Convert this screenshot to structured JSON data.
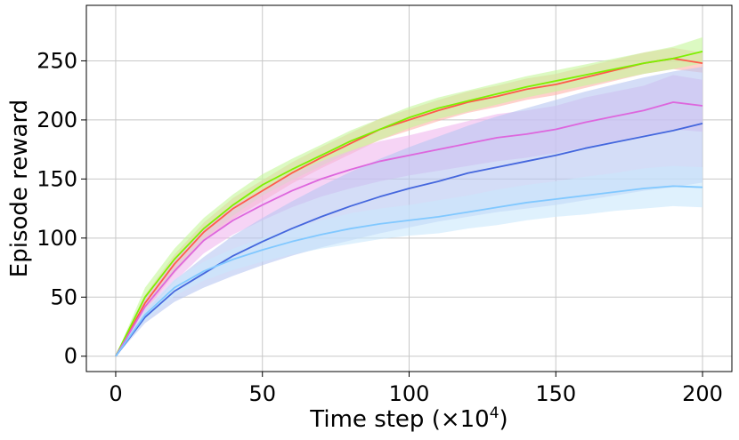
{
  "chart_data": {
    "type": "line",
    "title": "",
    "xlabel": "Time step (×10",
    "xlabel_sup": "4",
    "xlabel_suffix": ")",
    "ylabel": "Episode reward",
    "xlim": [
      -10,
      210
    ],
    "ylim": [
      -13,
      297
    ],
    "xticks": [
      0,
      50,
      100,
      150,
      200
    ],
    "yticks": [
      0,
      50,
      100,
      150,
      200,
      250
    ],
    "grid": true,
    "legend": "none",
    "series": [
      {
        "color": "#ff5a4a",
        "band": "#ffb3aa",
        "x": [
          0,
          10,
          20,
          30,
          40,
          50,
          60,
          70,
          80,
          90,
          100,
          110,
          120,
          130,
          140,
          150,
          160,
          170,
          180,
          190,
          200
        ],
        "mean": [
          0,
          45,
          78,
          105,
          125,
          140,
          155,
          168,
          180,
          192,
          200,
          208,
          215,
          220,
          226,
          230,
          236,
          242,
          248,
          252,
          248
        ],
        "lower": [
          0,
          38,
          70,
          97,
          116,
          131,
          146,
          159,
          171,
          183,
          191,
          199,
          206,
          211,
          217,
          221,
          227,
          233,
          239,
          243,
          240
        ],
        "upper": [
          0,
          52,
          86,
          113,
          134,
          149,
          164,
          177,
          189,
          201,
          209,
          217,
          224,
          229,
          235,
          239,
          245,
          251,
          257,
          261,
          257
        ]
      },
      {
        "color": "#7df000",
        "band": "#c5f79a",
        "x": [
          0,
          10,
          20,
          30,
          40,
          50,
          60,
          70,
          80,
          90,
          100,
          110,
          120,
          130,
          140,
          150,
          160,
          170,
          180,
          190,
          200
        ],
        "mean": [
          0,
          50,
          82,
          108,
          128,
          145,
          158,
          170,
          182,
          192,
          202,
          210,
          216,
          222,
          228,
          233,
          238,
          243,
          248,
          252,
          258
        ],
        "lower": [
          0,
          42,
          73,
          99,
          119,
          136,
          149,
          161,
          173,
          183,
          193,
          201,
          207,
          213,
          219,
          224,
          229,
          234,
          239,
          243,
          248
        ],
        "upper": [
          0,
          58,
          91,
          117,
          137,
          154,
          167,
          179,
          191,
          201,
          211,
          219,
          225,
          231,
          237,
          242,
          247,
          252,
          257,
          262,
          270
        ]
      },
      {
        "color": "#dd66dd",
        "band": "#f0b8ee",
        "x": [
          0,
          10,
          20,
          30,
          40,
          50,
          60,
          70,
          80,
          90,
          100,
          110,
          120,
          130,
          140,
          150,
          160,
          170,
          180,
          190,
          200
        ],
        "mean": [
          0,
          42,
          72,
          98,
          115,
          128,
          140,
          150,
          158,
          165,
          170,
          175,
          180,
          185,
          188,
          192,
          198,
          203,
          208,
          215,
          212
        ],
        "lower": [
          0,
          35,
          63,
          87,
          103,
          115,
          126,
          135,
          142,
          148,
          153,
          157,
          161,
          165,
          168,
          172,
          177,
          182,
          187,
          192,
          190
        ],
        "upper": [
          0,
          49,
          81,
          109,
          127,
          141,
          154,
          165,
          174,
          182,
          187,
          193,
          199,
          205,
          208,
          212,
          219,
          224,
          229,
          238,
          234
        ]
      },
      {
        "color": "#4466dd",
        "band": "#b7c7f2",
        "x": [
          0,
          10,
          20,
          30,
          40,
          50,
          60,
          70,
          80,
          90,
          100,
          110,
          120,
          130,
          140,
          150,
          160,
          170,
          180,
          190,
          200
        ],
        "mean": [
          0,
          33,
          55,
          70,
          85,
          97,
          108,
          118,
          127,
          135,
          142,
          148,
          155,
          160,
          165,
          170,
          176,
          181,
          186,
          191,
          197
        ],
        "lower": [
          0,
          28,
          46,
          58,
          68,
          77,
          85,
          92,
          98,
          104,
          109,
          114,
          118,
          122,
          125,
          128,
          132,
          136,
          140,
          143,
          147
        ],
        "upper": [
          0,
          38,
          64,
          84,
          102,
          117,
          131,
          144,
          156,
          167,
          177,
          186,
          195,
          203,
          210,
          217,
          224,
          230,
          236,
          241,
          245
        ]
      },
      {
        "color": "#80c8ff",
        "band": "#c9e7fb",
        "x": [
          0,
          10,
          20,
          30,
          40,
          50,
          60,
          70,
          80,
          90,
          100,
          110,
          120,
          130,
          140,
          150,
          160,
          170,
          180,
          190,
          200
        ],
        "mean": [
          0,
          35,
          58,
          72,
          82,
          90,
          97,
          103,
          108,
          112,
          115,
          118,
          122,
          126,
          130,
          133,
          136,
          139,
          142,
          144,
          143
        ],
        "lower": [
          0,
          30,
          51,
          64,
          73,
          80,
          86,
          91,
          95,
          99,
          102,
          104,
          108,
          111,
          115,
          118,
          120,
          123,
          125,
          127,
          126
        ],
        "upper": [
          0,
          40,
          65,
          80,
          91,
          100,
          108,
          115,
          121,
          125,
          128,
          132,
          136,
          141,
          145,
          148,
          152,
          155,
          159,
          161,
          160
        ]
      }
    ]
  }
}
